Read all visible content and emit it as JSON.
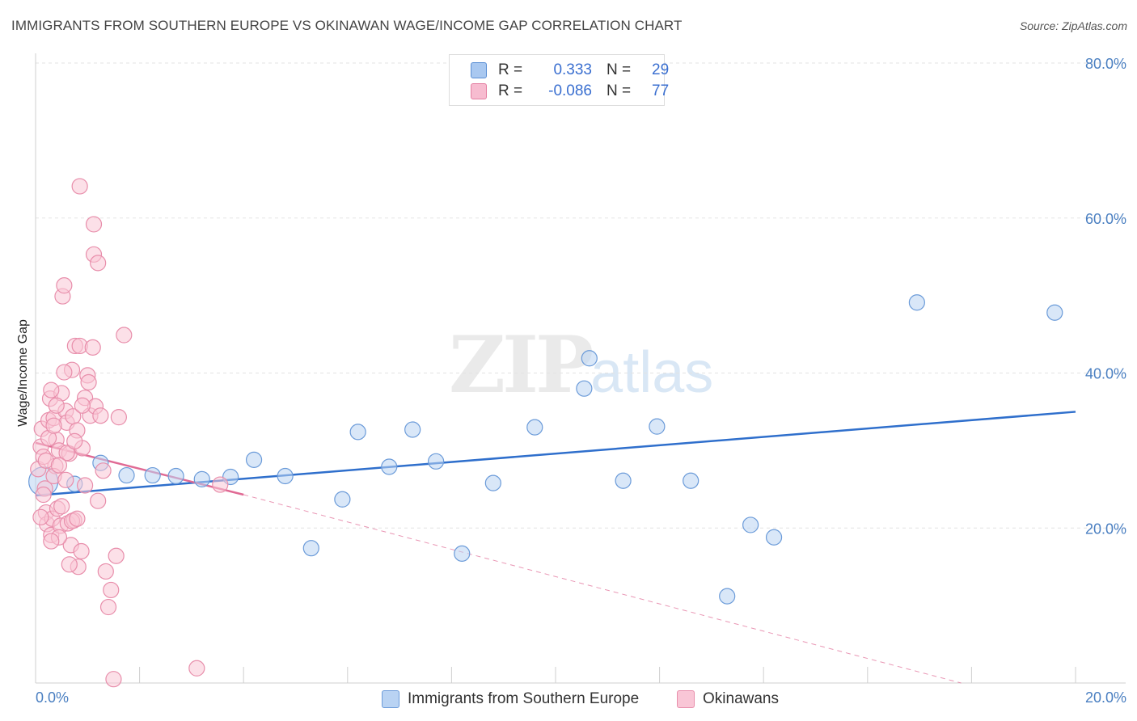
{
  "title": "IMMIGRANTS FROM SOUTHERN EUROPE VS OKINAWAN WAGE/INCOME GAP CORRELATION CHART",
  "source": "Source: ZipAtlas.com",
  "watermark": {
    "zip": "ZIP",
    "atlas": "atlas"
  },
  "legend": {
    "r_label": "R =",
    "n_label": "N =",
    "series": [
      {
        "r": "0.333",
        "n": "29",
        "color": "#a9c8f0",
        "border": "#5b8fd4"
      },
      {
        "r": "-0.086",
        "n": "77",
        "color": "#f7bcd0",
        "border": "#e47fa2"
      }
    ]
  },
  "bottom_legend": [
    {
      "label": "Immigrants from Southern Europe",
      "color": "#b9d3f3",
      "border": "#6b9bd9"
    },
    {
      "label": "Okinawans",
      "color": "#f9c6d6",
      "border": "#e88eab"
    }
  ],
  "chart_data": {
    "type": "scatter",
    "title": "IMMIGRANTS FROM SOUTHERN EUROPE VS OKINAWAN WAGE/INCOME GAP CORRELATION CHART",
    "xlabel": "",
    "ylabel": "Wage/Income Gap",
    "xlim": [
      0,
      20
    ],
    "ylim": [
      0,
      80
    ],
    "x_ticks": [
      "0.0%",
      "20.0%"
    ],
    "y_ticks": [
      "20.0%",
      "40.0%",
      "60.0%",
      "80.0%"
    ],
    "y_tick_values": [
      20,
      40,
      60,
      80
    ],
    "grid": true,
    "legend_position": "top-center",
    "series": [
      {
        "name": "Immigrants from Southern Europe",
        "color": "#6b9bd9",
        "fill": "#b9d3f3",
        "trend": {
          "x": [
            0,
            20
          ],
          "y": [
            24.2,
            35.0
          ],
          "color": "#2f6fcc"
        },
        "points": [
          [
            0.15,
            26.0
          ],
          [
            0.75,
            25.7
          ],
          [
            1.25,
            28.4
          ],
          [
            1.75,
            26.8
          ],
          [
            2.25,
            26.8
          ],
          [
            2.7,
            26.7
          ],
          [
            3.2,
            26.3
          ],
          [
            3.75,
            26.6
          ],
          [
            4.2,
            28.8
          ],
          [
            4.8,
            26.7
          ],
          [
            5.3,
            17.4
          ],
          [
            5.9,
            23.7
          ],
          [
            6.2,
            32.4
          ],
          [
            6.8,
            27.9
          ],
          [
            7.25,
            32.7
          ],
          [
            7.7,
            28.6
          ],
          [
            8.2,
            16.7
          ],
          [
            8.8,
            25.8
          ],
          [
            9.6,
            33.0
          ],
          [
            10.55,
            38.0
          ],
          [
            10.65,
            41.9
          ],
          [
            11.3,
            26.1
          ],
          [
            11.95,
            33.1
          ],
          [
            12.6,
            26.1
          ],
          [
            13.3,
            11.2
          ],
          [
            13.75,
            20.4
          ],
          [
            14.2,
            18.8
          ],
          [
            16.95,
            49.1
          ],
          [
            19.6,
            47.8
          ]
        ]
      },
      {
        "name": "Okinawans",
        "color": "#e88eab",
        "fill": "#f9c6d6",
        "trend": {
          "x": [
            0,
            4.0
          ],
          "y": [
            31.0,
            24.3
          ],
          "color": "#e06a94"
        },
        "trend_ext": {
          "x": [
            4.0,
            17.8
          ],
          "y": [
            24.3,
            0
          ]
        },
        "points": [
          [
            0.05,
            27.6
          ],
          [
            0.1,
            30.5
          ],
          [
            0.12,
            32.8
          ],
          [
            0.15,
            29.2
          ],
          [
            0.18,
            25.1
          ],
          [
            0.2,
            22.0
          ],
          [
            0.22,
            20.5
          ],
          [
            0.25,
            33.9
          ],
          [
            0.28,
            36.7
          ],
          [
            0.3,
            19.1
          ],
          [
            0.32,
            21.2
          ],
          [
            0.35,
            34.2
          ],
          [
            0.38,
            28.0
          ],
          [
            0.4,
            31.4
          ],
          [
            0.42,
            22.5
          ],
          [
            0.45,
            30.0
          ],
          [
            0.48,
            20.3
          ],
          [
            0.5,
            37.4
          ],
          [
            0.52,
            49.9
          ],
          [
            0.55,
            51.3
          ],
          [
            0.58,
            35.1
          ],
          [
            0.6,
            33.6
          ],
          [
            0.62,
            20.6
          ],
          [
            0.65,
            29.6
          ],
          [
            0.68,
            17.8
          ],
          [
            0.7,
            40.4
          ],
          [
            0.72,
            34.4
          ],
          [
            0.74,
            21.0
          ],
          [
            0.76,
            43.5
          ],
          [
            0.8,
            32.6
          ],
          [
            0.82,
            15.0
          ],
          [
            0.85,
            43.5
          ],
          [
            0.88,
            17.0
          ],
          [
            0.9,
            30.3
          ],
          [
            0.95,
            36.8
          ],
          [
            1.0,
            39.7
          ],
          [
            1.02,
            38.8
          ],
          [
            1.05,
            34.5
          ],
          [
            1.1,
            43.3
          ],
          [
            1.15,
            35.7
          ],
          [
            1.2,
            23.5
          ],
          [
            1.25,
            34.5
          ],
          [
            1.3,
            27.4
          ],
          [
            1.35,
            14.4
          ],
          [
            1.4,
            9.8
          ],
          [
            1.45,
            12.0
          ],
          [
            1.5,
            0.5
          ],
          [
            1.55,
            16.4
          ],
          [
            1.6,
            34.3
          ],
          [
            1.7,
            44.9
          ],
          [
            1.12,
            55.3
          ],
          [
            1.2,
            54.2
          ],
          [
            1.12,
            59.2
          ],
          [
            0.85,
            64.1
          ],
          [
            0.35,
            26.7
          ],
          [
            0.6,
            29.7
          ],
          [
            0.45,
            18.8
          ],
          [
            0.9,
            35.8
          ],
          [
            0.25,
            31.6
          ],
          [
            0.15,
            24.3
          ],
          [
            0.3,
            37.8
          ],
          [
            0.55,
            40.1
          ],
          [
            0.7,
            20.9
          ],
          [
            0.2,
            28.7
          ],
          [
            0.4,
            35.8
          ],
          [
            0.5,
            22.8
          ],
          [
            0.65,
            15.3
          ],
          [
            0.8,
            21.2
          ],
          [
            0.1,
            21.4
          ],
          [
            0.95,
            25.5
          ],
          [
            0.35,
            33.2
          ],
          [
            0.75,
            31.2
          ],
          [
            0.58,
            26.2
          ],
          [
            0.3,
            18.3
          ],
          [
            3.1,
            1.9
          ],
          [
            3.55,
            25.6
          ],
          [
            0.45,
            28.1
          ]
        ]
      }
    ]
  }
}
